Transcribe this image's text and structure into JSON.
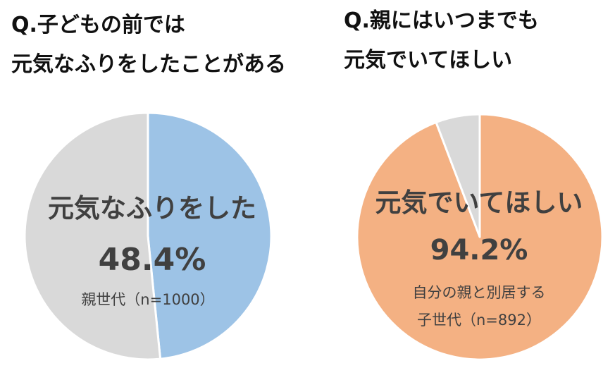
{
  "chart_data": [
    {
      "type": "pie",
      "title_lines": [
        "Q.子どもの前では",
        "元気なふりをしたことがある"
      ],
      "slices": [
        {
          "label": "元気なふりをした",
          "value": 48.4,
          "color": "#9DC3E6"
        },
        {
          "label": "",
          "value": 51.6,
          "color": "#D9D9D9"
        }
      ],
      "center_label": "元気なふりをした",
      "value_label": "48.4%",
      "sample_lines": [
        "親世代（n=1000）"
      ]
    },
    {
      "type": "pie",
      "title_lines": [
        "Q.親にはいつまでも",
        "元気でいてほしい"
      ],
      "slices": [
        {
          "label": "元気でいてほしい",
          "value": 94.2,
          "color": "#F4B183"
        },
        {
          "label": "",
          "value": 5.8,
          "color": "#D9D9D9"
        }
      ],
      "center_label": "元気でいてほしい",
      "value_label": "94.2%",
      "sample_lines": [
        "自分の親と別居する",
        "子世代（n=892）"
      ]
    }
  ]
}
